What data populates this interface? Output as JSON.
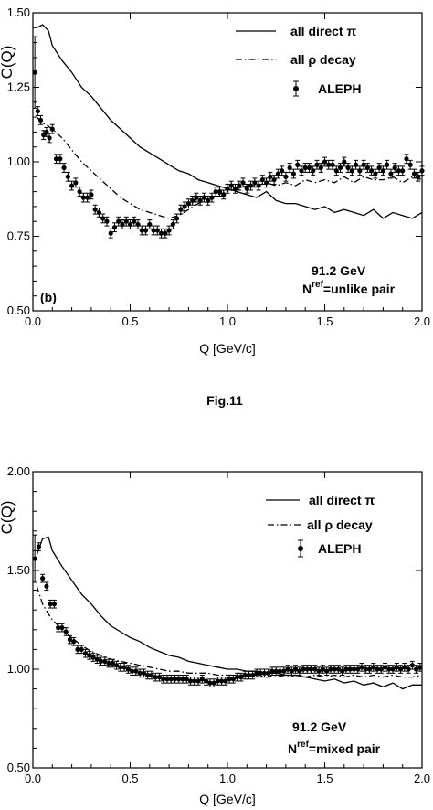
{
  "figure_caption": "Fig.11",
  "chart_data": [
    {
      "type": "line",
      "panel_label": "(b)",
      "xlabel": "Q [GeV/c]",
      "ylabel": "C(Q)",
      "xlim": [
        0,
        2.0
      ],
      "ylim": [
        0.5,
        1.5
      ],
      "x_ticks": [
        "0.0",
        "0.5",
        "1.0",
        "1.5",
        "2.0"
      ],
      "y_ticks": [
        "0.50",
        "0.75",
        "1.00",
        "1.25",
        "1.50"
      ],
      "annotation_line1": "91.2 GeV",
      "annotation_line2_prefix": "N",
      "annotation_line2_sup": "ref",
      "annotation_line2_suffix": "=unlike pair",
      "legend_position": "top-right",
      "series": [
        {
          "name": "all direct π",
          "style": "solid",
          "x": [
            0.02,
            0.05,
            0.08,
            0.1,
            0.15,
            0.2,
            0.25,
            0.3,
            0.35,
            0.4,
            0.45,
            0.5,
            0.55,
            0.6,
            0.65,
            0.7,
            0.75,
            0.8,
            0.85,
            0.9,
            0.95,
            1.0,
            1.05,
            1.1,
            1.15,
            1.2,
            1.25,
            1.3,
            1.35,
            1.4,
            1.45,
            1.5,
            1.55,
            1.6,
            1.65,
            1.7,
            1.75,
            1.8,
            1.85,
            1.9,
            1.95,
            2.0
          ],
          "y": [
            1.45,
            1.46,
            1.44,
            1.39,
            1.34,
            1.3,
            1.25,
            1.22,
            1.18,
            1.14,
            1.11,
            1.08,
            1.05,
            1.03,
            1.01,
            0.99,
            0.97,
            0.96,
            0.94,
            0.93,
            0.92,
            0.91,
            0.9,
            0.89,
            0.88,
            0.9,
            0.87,
            0.86,
            0.86,
            0.85,
            0.84,
            0.85,
            0.83,
            0.84,
            0.83,
            0.82,
            0.84,
            0.81,
            0.83,
            0.82,
            0.81,
            0.83
          ]
        },
        {
          "name": "all ρ decay",
          "style": "dashdot",
          "x": [
            0.02,
            0.05,
            0.08,
            0.1,
            0.15,
            0.2,
            0.25,
            0.3,
            0.35,
            0.4,
            0.45,
            0.5,
            0.55,
            0.6,
            0.65,
            0.7,
            0.75,
            0.8,
            0.85,
            0.9,
            0.95,
            1.0,
            1.05,
            1.1,
            1.15,
            1.2,
            1.25,
            1.3,
            1.35,
            1.4,
            1.45,
            1.5,
            1.55,
            1.6,
            1.65,
            1.7,
            1.75,
            1.8,
            1.85,
            1.9,
            1.95,
            2.0
          ],
          "y": [
            1.15,
            1.13,
            1.12,
            1.11,
            1.08,
            1.04,
            1.0,
            0.97,
            0.94,
            0.91,
            0.88,
            0.86,
            0.84,
            0.83,
            0.82,
            0.81,
            0.82,
            0.84,
            0.86,
            0.87,
            0.89,
            0.9,
            0.91,
            0.92,
            0.92,
            0.93,
            0.92,
            0.93,
            0.92,
            0.94,
            0.93,
            0.94,
            0.93,
            0.95,
            0.93,
            0.95,
            0.94,
            0.94,
            0.95,
            0.93,
            0.95,
            0.94
          ]
        },
        {
          "name": "ALEPH",
          "style": "points",
          "x": [
            0.01,
            0.025,
            0.04,
            0.055,
            0.07,
            0.085,
            0.1,
            0.12,
            0.14,
            0.16,
            0.18,
            0.2,
            0.22,
            0.24,
            0.26,
            0.28,
            0.3,
            0.32,
            0.34,
            0.36,
            0.38,
            0.4,
            0.42,
            0.44,
            0.46,
            0.48,
            0.5,
            0.52,
            0.54,
            0.56,
            0.58,
            0.6,
            0.62,
            0.64,
            0.66,
            0.68,
            0.7,
            0.72,
            0.74,
            0.76,
            0.78,
            0.8,
            0.82,
            0.84,
            0.86,
            0.88,
            0.9,
            0.92,
            0.94,
            0.96,
            0.98,
            1.0,
            1.02,
            1.04,
            1.06,
            1.08,
            1.1,
            1.12,
            1.14,
            1.16,
            1.18,
            1.2,
            1.22,
            1.24,
            1.26,
            1.28,
            1.3,
            1.32,
            1.34,
            1.36,
            1.38,
            1.4,
            1.42,
            1.44,
            1.46,
            1.48,
            1.5,
            1.52,
            1.54,
            1.56,
            1.58,
            1.6,
            1.62,
            1.64,
            1.66,
            1.68,
            1.7,
            1.72,
            1.74,
            1.76,
            1.78,
            1.8,
            1.82,
            1.84,
            1.86,
            1.88,
            1.9,
            1.92,
            1.94,
            1.96,
            1.98,
            2.0
          ],
          "y": [
            1.3,
            1.17,
            1.14,
            1.09,
            1.1,
            1.08,
            1.11,
            1.01,
            1.01,
            0.98,
            0.95,
            0.92,
            0.93,
            0.9,
            0.88,
            0.88,
            0.89,
            0.84,
            0.83,
            0.81,
            0.8,
            0.76,
            0.78,
            0.8,
            0.79,
            0.8,
            0.79,
            0.8,
            0.79,
            0.77,
            0.77,
            0.79,
            0.77,
            0.77,
            0.76,
            0.76,
            0.77,
            0.79,
            0.81,
            0.84,
            0.85,
            0.86,
            0.87,
            0.88,
            0.87,
            0.88,
            0.87,
            0.88,
            0.9,
            0.9,
            0.89,
            0.91,
            0.92,
            0.91,
            0.92,
            0.93,
            0.91,
            0.92,
            0.93,
            0.92,
            0.94,
            0.93,
            0.95,
            0.94,
            0.96,
            0.97,
            0.95,
            0.98,
            0.96,
            0.99,
            0.97,
            0.98,
            0.98,
            0.97,
            0.99,
            0.98,
            1.0,
            0.99,
            0.99,
            0.97,
            0.98,
            1.0,
            0.98,
            0.97,
            0.99,
            0.97,
            0.99,
            0.98,
            0.97,
            0.96,
            0.98,
            0.97,
            0.99,
            0.96,
            0.98,
            0.97,
            0.97,
            1.01,
            0.99,
            0.96,
            0.95,
            0.97
          ],
          "err": 0.015,
          "err_first": 0.12
        }
      ]
    },
    {
      "type": "line",
      "panel_label": "",
      "xlabel": "Q [GeV/c]",
      "ylabel": "C(Q)",
      "xlim": [
        0,
        2.0
      ],
      "ylim": [
        0.5,
        2.0
      ],
      "x_ticks": [
        "0.0",
        "0.5",
        "1.0",
        "1.5",
        "2.0"
      ],
      "y_ticks": [
        "0.50",
        "1.00",
        "1.50",
        "2.00"
      ],
      "annotation_line1": "91.2 GeV",
      "annotation_line2_prefix": "N",
      "annotation_line2_sup": "ref",
      "annotation_line2_suffix": "=mixed pair",
      "legend_position": "top-right",
      "series": [
        {
          "name": "all direct π",
          "style": "solid",
          "x": [
            0.02,
            0.05,
            0.08,
            0.1,
            0.15,
            0.2,
            0.25,
            0.3,
            0.35,
            0.4,
            0.45,
            0.5,
            0.55,
            0.6,
            0.65,
            0.7,
            0.75,
            0.8,
            0.85,
            0.9,
            0.95,
            1.0,
            1.05,
            1.1,
            1.15,
            1.2,
            1.25,
            1.3,
            1.35,
            1.4,
            1.45,
            1.5,
            1.55,
            1.6,
            1.65,
            1.7,
            1.75,
            1.8,
            1.85,
            1.9,
            1.95,
            2.0
          ],
          "y": [
            1.58,
            1.66,
            1.67,
            1.6,
            1.52,
            1.45,
            1.38,
            1.33,
            1.27,
            1.22,
            1.19,
            1.16,
            1.14,
            1.11,
            1.09,
            1.07,
            1.06,
            1.04,
            1.03,
            1.02,
            1.01,
            1.0,
            1.0,
            0.99,
            0.99,
            0.98,
            0.98,
            0.97,
            0.97,
            0.96,
            0.95,
            0.94,
            0.95,
            0.93,
            0.94,
            0.92,
            0.93,
            0.91,
            0.93,
            0.9,
            0.92,
            0.92
          ]
        },
        {
          "name": "all ρ decay",
          "style": "dashdot",
          "x": [
            0.02,
            0.05,
            0.08,
            0.1,
            0.15,
            0.2,
            0.25,
            0.3,
            0.35,
            0.4,
            0.45,
            0.5,
            0.55,
            0.6,
            0.65,
            0.7,
            0.75,
            0.8,
            0.85,
            0.9,
            0.95,
            1.0,
            1.05,
            1.1,
            1.15,
            1.2,
            1.25,
            1.3,
            1.35,
            1.4,
            1.45,
            1.5,
            1.55,
            1.6,
            1.65,
            1.7,
            1.75,
            1.8,
            1.85,
            1.9,
            1.95,
            2.0
          ],
          "y": [
            1.42,
            1.33,
            1.28,
            1.25,
            1.2,
            1.16,
            1.12,
            1.09,
            1.07,
            1.05,
            1.04,
            1.03,
            1.02,
            1.01,
            1.0,
            0.99,
            0.99,
            0.98,
            0.98,
            0.98,
            0.97,
            0.97,
            0.97,
            0.97,
            0.97,
            0.96,
            0.97,
            0.96,
            0.97,
            0.96,
            0.97,
            0.96,
            0.97,
            0.96,
            0.97,
            0.96,
            0.97,
            0.96,
            0.97,
            0.96,
            0.96,
            0.97
          ]
        },
        {
          "name": "ALEPH",
          "style": "points",
          "x": [
            0.01,
            0.03,
            0.05,
            0.07,
            0.09,
            0.11,
            0.13,
            0.15,
            0.17,
            0.19,
            0.21,
            0.23,
            0.25,
            0.27,
            0.29,
            0.31,
            0.33,
            0.35,
            0.37,
            0.39,
            0.41,
            0.43,
            0.45,
            0.47,
            0.49,
            0.51,
            0.53,
            0.55,
            0.57,
            0.59,
            0.61,
            0.63,
            0.65,
            0.67,
            0.69,
            0.71,
            0.73,
            0.75,
            0.77,
            0.79,
            0.81,
            0.83,
            0.85,
            0.87,
            0.89,
            0.91,
            0.93,
            0.95,
            0.97,
            0.99,
            1.01,
            1.03,
            1.05,
            1.07,
            1.09,
            1.11,
            1.13,
            1.15,
            1.17,
            1.19,
            1.21,
            1.23,
            1.25,
            1.27,
            1.29,
            1.31,
            1.33,
            1.35,
            1.37,
            1.39,
            1.41,
            1.43,
            1.45,
            1.47,
            1.49,
            1.51,
            1.53,
            1.55,
            1.57,
            1.59,
            1.61,
            1.63,
            1.65,
            1.67,
            1.69,
            1.71,
            1.73,
            1.75,
            1.77,
            1.79,
            1.81,
            1.83,
            1.85,
            1.87,
            1.89,
            1.91,
            1.93,
            1.95,
            1.97,
            1.99
          ],
          "y": [
            1.56,
            1.62,
            1.46,
            1.42,
            1.33,
            1.33,
            1.21,
            1.21,
            1.19,
            1.15,
            1.14,
            1.1,
            1.1,
            1.08,
            1.07,
            1.06,
            1.05,
            1.04,
            1.04,
            1.03,
            1.03,
            1.02,
            1.01,
            1.01,
            1.0,
            0.99,
            0.99,
            0.98,
            0.98,
            0.97,
            0.97,
            0.96,
            0.96,
            0.95,
            0.95,
            0.95,
            0.95,
            0.95,
            0.95,
            0.95,
            0.94,
            0.94,
            0.94,
            0.95,
            0.94,
            0.93,
            0.93,
            0.94,
            0.94,
            0.94,
            0.95,
            0.95,
            0.96,
            0.96,
            0.97,
            0.97,
            0.97,
            0.98,
            0.98,
            0.98,
            0.98,
            0.99,
            0.99,
            0.99,
            0.99,
            1.0,
            0.99,
            1.0,
            0.99,
            1.0,
            1.0,
            1.0,
            1.0,
            0.99,
            1.0,
            0.99,
            1.0,
            1.0,
            1.0,
            0.99,
            1.0,
            1.0,
            1.0,
            1.0,
            1.01,
            1.0,
            1.0,
            1.01,
            1.0,
            1.0,
            1.01,
            1.0,
            1.0,
            1.01,
            1.0,
            1.01,
            1.0,
            1.02,
            1.0,
            1.01
          ],
          "err": 0.02,
          "err_first": 0.12
        }
      ]
    }
  ]
}
